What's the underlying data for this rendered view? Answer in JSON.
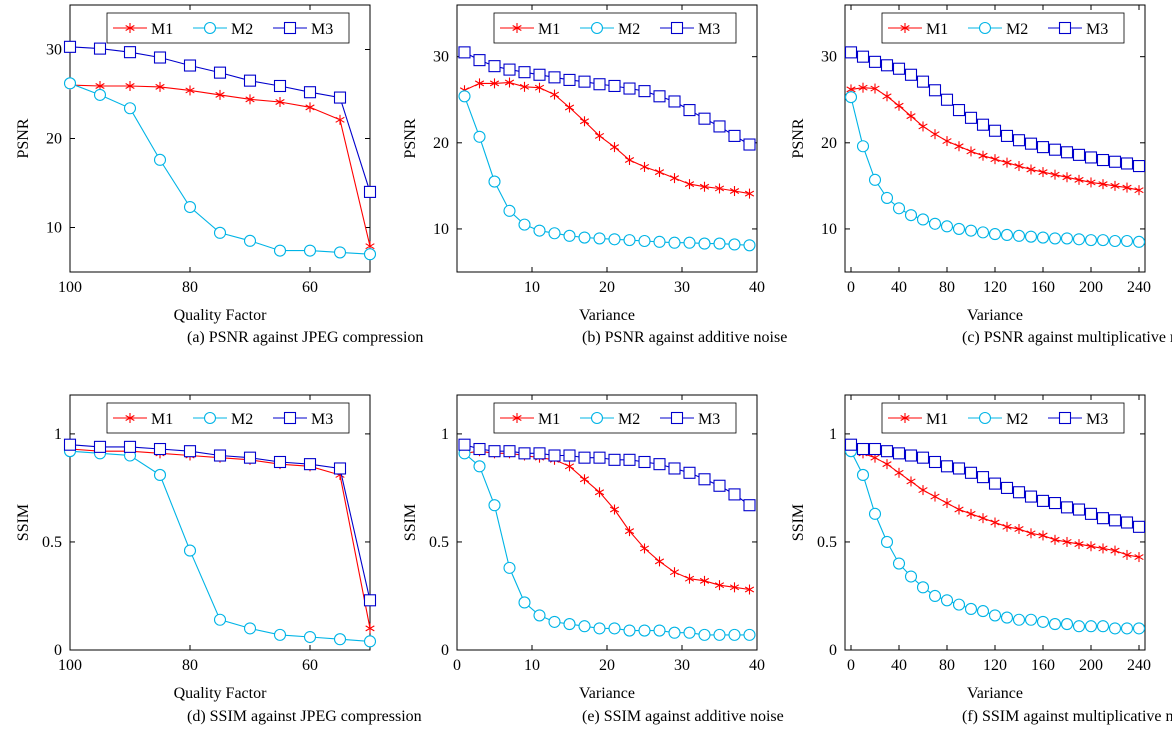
{
  "series_style": {
    "M1": {
      "color": "#ff0000",
      "marker": "asterisk"
    },
    "M2": {
      "color": "#00b4e6",
      "marker": "circle"
    },
    "M3": {
      "color": "#0000cc",
      "marker": "square"
    }
  },
  "chart_data": [
    {
      "type": "line",
      "caption": "(a) PSNR against JPEG compression",
      "xlabel": "Quality Factor",
      "ylabel": "PSNR",
      "xlim": [
        100,
        50
      ],
      "ylim": [
        5,
        35
      ],
      "xticks": [
        100,
        80,
        60
      ],
      "yticks": [
        10,
        20,
        30
      ],
      "legend": "top",
      "x": [
        100,
        95,
        90,
        85,
        80,
        75,
        70,
        65,
        60,
        55,
        50
      ],
      "series": [
        {
          "name": "M1",
          "values": [
            26.0,
            25.9,
            25.9,
            25.8,
            25.4,
            24.9,
            24.4,
            24.1,
            23.5,
            22.1,
            7.9
          ]
        },
        {
          "name": "M2",
          "values": [
            26.2,
            24.9,
            23.4,
            17.6,
            12.3,
            9.4,
            8.5,
            7.4,
            7.4,
            7.2,
            7.0
          ]
        },
        {
          "name": "M3",
          "values": [
            30.3,
            30.1,
            29.7,
            29.1,
            28.2,
            27.4,
            26.5,
            25.9,
            25.2,
            24.6,
            14.0
          ]
        }
      ]
    },
    {
      "type": "line",
      "caption": "(b) PSNR against additive noise",
      "xlabel": "Variance",
      "ylabel": "PSNR",
      "xlim": [
        0,
        40
      ],
      "ylim": [
        5,
        36
      ],
      "xticks": [
        10,
        20,
        30,
        40
      ],
      "yticks": [
        10,
        20,
        30
      ],
      "legend": "top",
      "x": [
        1,
        3,
        5,
        7,
        9,
        11,
        13,
        15,
        17,
        19,
        21,
        23,
        25,
        27,
        29,
        31,
        33,
        35,
        37,
        39
      ],
      "series": [
        {
          "name": "M1",
          "values": [
            26.1,
            26.9,
            26.9,
            27.0,
            26.5,
            26.4,
            25.6,
            24.1,
            22.5,
            20.8,
            19.5,
            18.0,
            17.2,
            16.6,
            15.9,
            15.2,
            14.9,
            14.7,
            14.4,
            14.1
          ]
        },
        {
          "name": "M2",
          "values": [
            25.4,
            20.7,
            15.5,
            12.1,
            10.5,
            9.8,
            9.5,
            9.2,
            9.0,
            8.9,
            8.8,
            8.7,
            8.6,
            8.5,
            8.4,
            8.4,
            8.3,
            8.3,
            8.2,
            8.1
          ]
        },
        {
          "name": "M3",
          "values": [
            30.5,
            29.6,
            28.9,
            28.5,
            28.2,
            27.9,
            27.6,
            27.3,
            27.1,
            26.8,
            26.6,
            26.3,
            26.0,
            25.4,
            24.8,
            23.8,
            22.8,
            21.9,
            20.8,
            19.8
          ]
        }
      ]
    },
    {
      "type": "line",
      "caption": "(c) PSNR against multiplicative noise",
      "xlabel": "Variance",
      "ylabel": "PSNR",
      "xlim": [
        -5,
        245
      ],
      "ylim": [
        5,
        36
      ],
      "xticks": [
        0,
        40,
        80,
        120,
        160,
        200,
        240
      ],
      "yticks": [
        10,
        20,
        30
      ],
      "legend": "top",
      "x": [
        0,
        10,
        20,
        30,
        40,
        50,
        60,
        70,
        80,
        90,
        100,
        110,
        120,
        130,
        140,
        150,
        160,
        170,
        180,
        190,
        200,
        210,
        220,
        230,
        240
      ],
      "series": [
        {
          "name": "M1",
          "values": [
            26.2,
            26.4,
            26.3,
            25.4,
            24.3,
            23.1,
            21.9,
            21.0,
            20.2,
            19.6,
            19.0,
            18.5,
            18.1,
            17.7,
            17.3,
            16.9,
            16.6,
            16.3,
            16.0,
            15.7,
            15.4,
            15.2,
            15.0,
            14.8,
            14.5
          ]
        },
        {
          "name": "M2",
          "values": [
            25.3,
            19.6,
            15.7,
            13.6,
            12.4,
            11.6,
            11.1,
            10.6,
            10.3,
            10.0,
            9.8,
            9.6,
            9.4,
            9.3,
            9.2,
            9.1,
            9.0,
            8.9,
            8.9,
            8.8,
            8.7,
            8.7,
            8.6,
            8.6,
            8.5
          ]
        },
        {
          "name": "M3",
          "values": [
            30.5,
            30.0,
            29.4,
            29.0,
            28.6,
            27.9,
            27.1,
            26.1,
            25.0,
            23.8,
            22.9,
            22.1,
            21.4,
            20.8,
            20.3,
            19.9,
            19.5,
            19.2,
            18.9,
            18.6,
            18.3,
            18.0,
            17.8,
            17.6,
            17.3
          ]
        }
      ]
    },
    {
      "type": "line",
      "caption": "(d) SSIM against JPEG compression",
      "xlabel": "Quality Factor",
      "ylabel": "SSIM",
      "xlim": [
        100,
        50
      ],
      "ylim": [
        0,
        1.18
      ],
      "xticks": [
        100,
        80,
        60
      ],
      "yticks": [
        0,
        0.5,
        1
      ],
      "legend": "top",
      "x": [
        100,
        95,
        90,
        85,
        80,
        75,
        70,
        65,
        60,
        55,
        50
      ],
      "series": [
        {
          "name": "M1",
          "values": [
            0.93,
            0.92,
            0.92,
            0.91,
            0.9,
            0.89,
            0.88,
            0.86,
            0.85,
            0.81,
            0.1
          ]
        },
        {
          "name": "M2",
          "values": [
            0.92,
            0.91,
            0.9,
            0.81,
            0.46,
            0.14,
            0.1,
            0.07,
            0.06,
            0.05,
            0.04
          ]
        },
        {
          "name": "M3",
          "values": [
            0.95,
            0.94,
            0.94,
            0.93,
            0.92,
            0.9,
            0.89,
            0.87,
            0.86,
            0.84,
            0.23
          ]
        }
      ]
    },
    {
      "type": "line",
      "caption": "(e) SSIM against additive noise",
      "xlabel": "Variance",
      "ylabel": "SSIM",
      "xlim": [
        0,
        40
      ],
      "ylim": [
        0,
        1.18
      ],
      "xticks": [
        0,
        10,
        20,
        30,
        40
      ],
      "yticks": [
        0,
        0.5,
        1
      ],
      "legend": "top",
      "x": [
        1,
        3,
        5,
        7,
        9,
        11,
        13,
        15,
        17,
        19,
        21,
        23,
        25,
        27,
        29,
        31,
        33,
        35,
        37,
        39
      ],
      "series": [
        {
          "name": "M1",
          "values": [
            0.91,
            0.92,
            0.91,
            0.91,
            0.9,
            0.89,
            0.88,
            0.85,
            0.79,
            0.73,
            0.65,
            0.55,
            0.47,
            0.41,
            0.36,
            0.33,
            0.32,
            0.3,
            0.29,
            0.28
          ]
        },
        {
          "name": "M2",
          "values": [
            0.91,
            0.85,
            0.67,
            0.38,
            0.22,
            0.16,
            0.13,
            0.12,
            0.11,
            0.1,
            0.1,
            0.09,
            0.09,
            0.09,
            0.08,
            0.08,
            0.07,
            0.07,
            0.07,
            0.07
          ]
        },
        {
          "name": "M3",
          "values": [
            0.95,
            0.93,
            0.92,
            0.92,
            0.91,
            0.91,
            0.9,
            0.9,
            0.89,
            0.89,
            0.88,
            0.88,
            0.87,
            0.86,
            0.84,
            0.82,
            0.79,
            0.76,
            0.72,
            0.67
          ]
        }
      ]
    },
    {
      "type": "line",
      "caption": "(f) SSIM against multiplicative noise",
      "xlabel": "Variance",
      "ylabel": "SSIM",
      "xlim": [
        -5,
        245
      ],
      "ylim": [
        0,
        1.18
      ],
      "xticks": [
        0,
        40,
        80,
        120,
        160,
        200,
        240
      ],
      "yticks": [
        0,
        0.5,
        1
      ],
      "legend": "top",
      "x": [
        0,
        10,
        20,
        30,
        40,
        50,
        60,
        70,
        80,
        90,
        100,
        110,
        120,
        130,
        140,
        150,
        160,
        170,
        180,
        190,
        200,
        210,
        220,
        230,
        240
      ],
      "series": [
        {
          "name": "M1",
          "values": [
            0.92,
            0.91,
            0.89,
            0.86,
            0.82,
            0.78,
            0.74,
            0.71,
            0.68,
            0.65,
            0.63,
            0.61,
            0.59,
            0.57,
            0.56,
            0.54,
            0.53,
            0.51,
            0.5,
            0.49,
            0.48,
            0.47,
            0.46,
            0.44,
            0.43
          ]
        },
        {
          "name": "M2",
          "values": [
            0.92,
            0.81,
            0.63,
            0.5,
            0.4,
            0.34,
            0.29,
            0.25,
            0.23,
            0.21,
            0.19,
            0.18,
            0.16,
            0.15,
            0.14,
            0.14,
            0.13,
            0.12,
            0.12,
            0.11,
            0.11,
            0.11,
            0.1,
            0.1,
            0.1
          ]
        },
        {
          "name": "M3",
          "values": [
            0.95,
            0.93,
            0.93,
            0.92,
            0.91,
            0.9,
            0.89,
            0.87,
            0.85,
            0.84,
            0.82,
            0.8,
            0.77,
            0.75,
            0.73,
            0.71,
            0.69,
            0.68,
            0.66,
            0.65,
            0.63,
            0.61,
            0.6,
            0.59,
            0.57
          ]
        }
      ]
    }
  ]
}
